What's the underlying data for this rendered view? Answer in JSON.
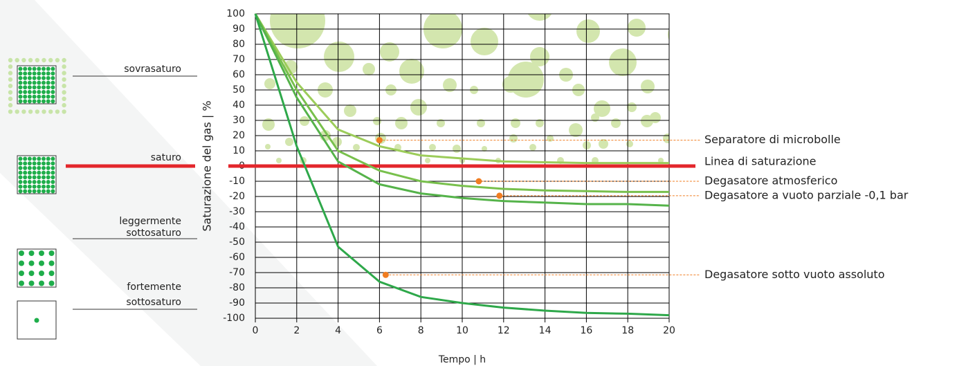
{
  "chart_data": {
    "type": "line",
    "xlabel": "Tempo | h",
    "ylabel": "Saturazione del gas | %",
    "x": [
      0,
      2,
      4,
      6,
      8,
      10,
      12,
      14,
      16,
      18,
      20
    ],
    "xlim": [
      0,
      20
    ],
    "xticks": [
      0,
      2,
      4,
      6,
      8,
      10,
      12,
      14,
      16,
      18,
      20
    ],
    "ylim": [
      -100,
      100
    ],
    "yticks": [
      -100,
      -90,
      -80,
      -70,
      -60,
      -50,
      -40,
      -30,
      -20,
      -10,
      0,
      10,
      20,
      30,
      40,
      50,
      60,
      70,
      80,
      90,
      100
    ],
    "grid": true,
    "marker_color": "#f07d21",
    "series": [
      {
        "name": "Separatore di microbolle",
        "color": "#9ccc5a",
        "values": [
          100,
          55,
          24,
          13,
          7,
          5,
          3,
          2.5,
          2,
          2,
          2
        ],
        "marker": {
          "x": 6,
          "y": 17
        }
      },
      {
        "name": "Degasatore atmosferico",
        "color": "#78c04c",
        "values": [
          100,
          50,
          10,
          -3,
          -10,
          -13,
          -15,
          -16,
          -16.5,
          -17,
          -17
        ],
        "marker": {
          "x": 10.8,
          "y": -10
        }
      },
      {
        "name": "Degasatore a vuoto parziale -0,1 bar",
        "color": "#55b34a",
        "values": [
          100,
          45,
          3,
          -12,
          -18,
          -21,
          -23,
          -24,
          -25,
          -25,
          -26
        ],
        "marker": {
          "x": 11.8,
          "y": -19.5
        }
      },
      {
        "name": "Degasatore sotto vuoto assoluto",
        "color": "#2ea84a",
        "values": [
          100,
          13,
          -53,
          -76,
          -86,
          -90,
          -93,
          -95,
          -96.5,
          -97,
          -98
        ],
        "marker": {
          "x": 6.3,
          "y": -71.5
        }
      }
    ],
    "saturation_line": {
      "value": 0,
      "label": "Linea di saturazione",
      "color": "#e3262b"
    },
    "states": [
      [
        "sovrasaturo"
      ],
      [
        "saturo"
      ],
      [
        "leggermente",
        "sottosaturo"
      ],
      [
        "fortemente",
        "sottosaturo"
      ]
    ]
  }
}
